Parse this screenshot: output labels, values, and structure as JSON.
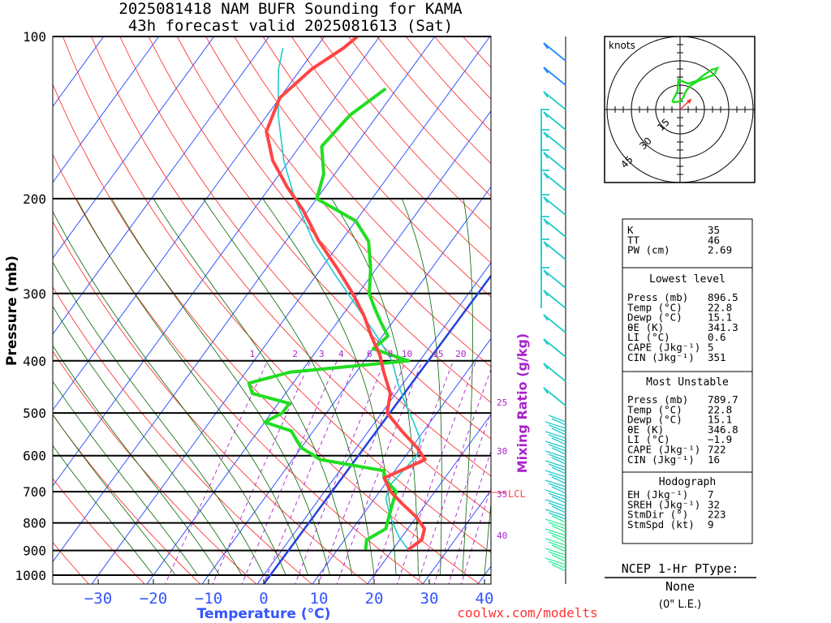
{
  "header": {
    "title_line1": "2025081418 NAM BUFR Sounding for KAMA",
    "title_line2": "43h forecast valid 2025081613 (Sat)"
  },
  "axes": {
    "ylabel": "Pressure (mb)",
    "xlabel": "Temperature (°C)",
    "pressure_ticks": [
      "100",
      "200",
      "300",
      "400",
      "500",
      "600",
      "700",
      "800",
      "900",
      "1000"
    ],
    "temp_ticks": [
      "−30",
      "−20",
      "−10",
      "0",
      "10",
      "20",
      "30",
      "40"
    ],
    "mixing_ratio_label": "Mixing Ratio (g/kg)",
    "mixing_ratio_ticks_top": [
      "1",
      "2",
      "3",
      "4",
      "6",
      "8",
      "10",
      "15",
      "20"
    ],
    "mixing_ratio_ticks_right": [
      "25",
      "30",
      "35",
      "40"
    ],
    "lcl_label": "LCL"
  },
  "chart_data": {
    "type": "line",
    "title": "2025081418 NAM BUFR Sounding for KAMA",
    "subtitle": "43h forecast valid 2025081613 (Sat)",
    "xlabel": "Temperature (°C)",
    "ylabel": "Pressure (mb)",
    "xlim": [
      -40,
      42
    ],
    "ylim": [
      1050,
      100
    ],
    "yscale": "log",
    "series": [
      {
        "name": "",
        "color": "#ff4444",
        "pressure": [
          896.5,
          860,
          820,
          780,
          740,
          700,
          660,
          630,
          610,
          580,
          540,
          500,
          460,
          420,
          390,
          360,
          330,
          300,
          270,
          240,
          210,
          190,
          170,
          150,
          130,
          115,
          105,
          100
        ],
        "temp": [
          22.8,
          24,
          23,
          20,
          16,
          12,
          9,
          12,
          14,
          11,
          6,
          1,
          -1,
          -5,
          -8,
          -12,
          -16,
          -21,
          -27,
          -34,
          -41,
          -47,
          -53,
          -58,
          -60,
          -58,
          -55,
          -54
        ]
      },
      {
        "name": "",
        "color": "#22dd22",
        "pressure": [
          896.5,
          860,
          820,
          780,
          740,
          700,
          680,
          660,
          640,
          610,
          580,
          560,
          540,
          520,
          500,
          480,
          460,
          440,
          420,
          400,
          380,
          360,
          340,
          320,
          300,
          270,
          240,
          220,
          200,
          180,
          160,
          140,
          125
        ],
        "temp": [
          15.1,
          14,
          16,
          15,
          14,
          13,
          11,
          9,
          8,
          -5,
          -10,
          -12,
          -14,
          -20,
          -18,
          -18,
          -26,
          -28,
          -22,
          -2,
          -10,
          -9,
          -12,
          -15,
          -18,
          -21,
          -25,
          -30,
          -40,
          -42,
          -46,
          -45,
          -42
        ]
      },
      {
        "name": "",
        "color": "#22cccc",
        "pressure": [
          896.5,
          850,
          800,
          760,
          720,
          680,
          640,
          600,
          560,
          520,
          480,
          440,
          400,
          360,
          320,
          280,
          240,
          200,
          170,
          140,
          115,
          105
        ],
        "temp": [
          22.8,
          19.5,
          16.5,
          14.2,
          12,
          11,
          11.5,
          12,
          10.5,
          7,
          3,
          -1,
          -5,
          -11,
          -18,
          -26,
          -35,
          -44,
          -51,
          -58,
          -64,
          -66
        ]
      }
    ],
    "wind_barbs_note": "wind barbs at right edge, cyan/green/blue"
  },
  "hodograph": {
    "label": "knots",
    "ring_labels": [
      "15",
      "30",
      "45"
    ]
  },
  "indices": {
    "top": [
      {
        "k": "K",
        "v": "35"
      },
      {
        "k": "TT",
        "v": "46"
      },
      {
        "k": "PW (cm)",
        "v": "2.69"
      }
    ],
    "lowest_title": "Lowest level",
    "lowest": [
      {
        "k": "Press (mb)",
        "v": "896.5"
      },
      {
        "k": "Temp (°C)",
        "v": "22.8"
      },
      {
        "k": "Dewp (°C)",
        "v": "15.1"
      },
      {
        "k": "θE (K)",
        "v": "341.3"
      },
      {
        "k": "LI (°C)",
        "v": "0.6"
      },
      {
        "k": "CAPE (Jkg⁻¹)",
        "v": "5"
      },
      {
        "k": "CIN (Jkg⁻¹)",
        "v": "351"
      }
    ],
    "mu_title": "Most Unstable",
    "mu": [
      {
        "k": "Press (mb)",
        "v": "789.7"
      },
      {
        "k": "Temp (°C)",
        "v": "22.8"
      },
      {
        "k": "Dewp (°C)",
        "v": "15.1"
      },
      {
        "k": "θE (K)",
        "v": "346.8"
      },
      {
        "k": "LI (°C)",
        "v": "−1.9"
      },
      {
        "k": "CAPE (Jkg⁻¹)",
        "v": "722"
      },
      {
        "k": "CIN (Jkg⁻¹)",
        "v": "16"
      }
    ],
    "hodo_title": "Hodograph",
    "hodo": [
      {
        "k": "EH (Jkg⁻¹)",
        "v": "7"
      },
      {
        "k": "SREH (Jkg⁻¹)",
        "v": "32"
      },
      {
        "k": "StmDir (°)",
        "v": "223"
      },
      {
        "k": "StmSpd (kt)",
        "v": "9"
      }
    ]
  },
  "ptype": {
    "title": "NCEP 1-Hr PType:",
    "value": "None",
    "sub": "(0\" L.E.)"
  },
  "footer": {
    "site": "coolwx.com/modelts"
  },
  "colors": {
    "isotherm": "#3355ff",
    "dry_adiabat": "#ff2222",
    "moist_adiabat": "#006600",
    "mixing_ratio": "#aa22cc",
    "parcel": "#2244dd"
  }
}
